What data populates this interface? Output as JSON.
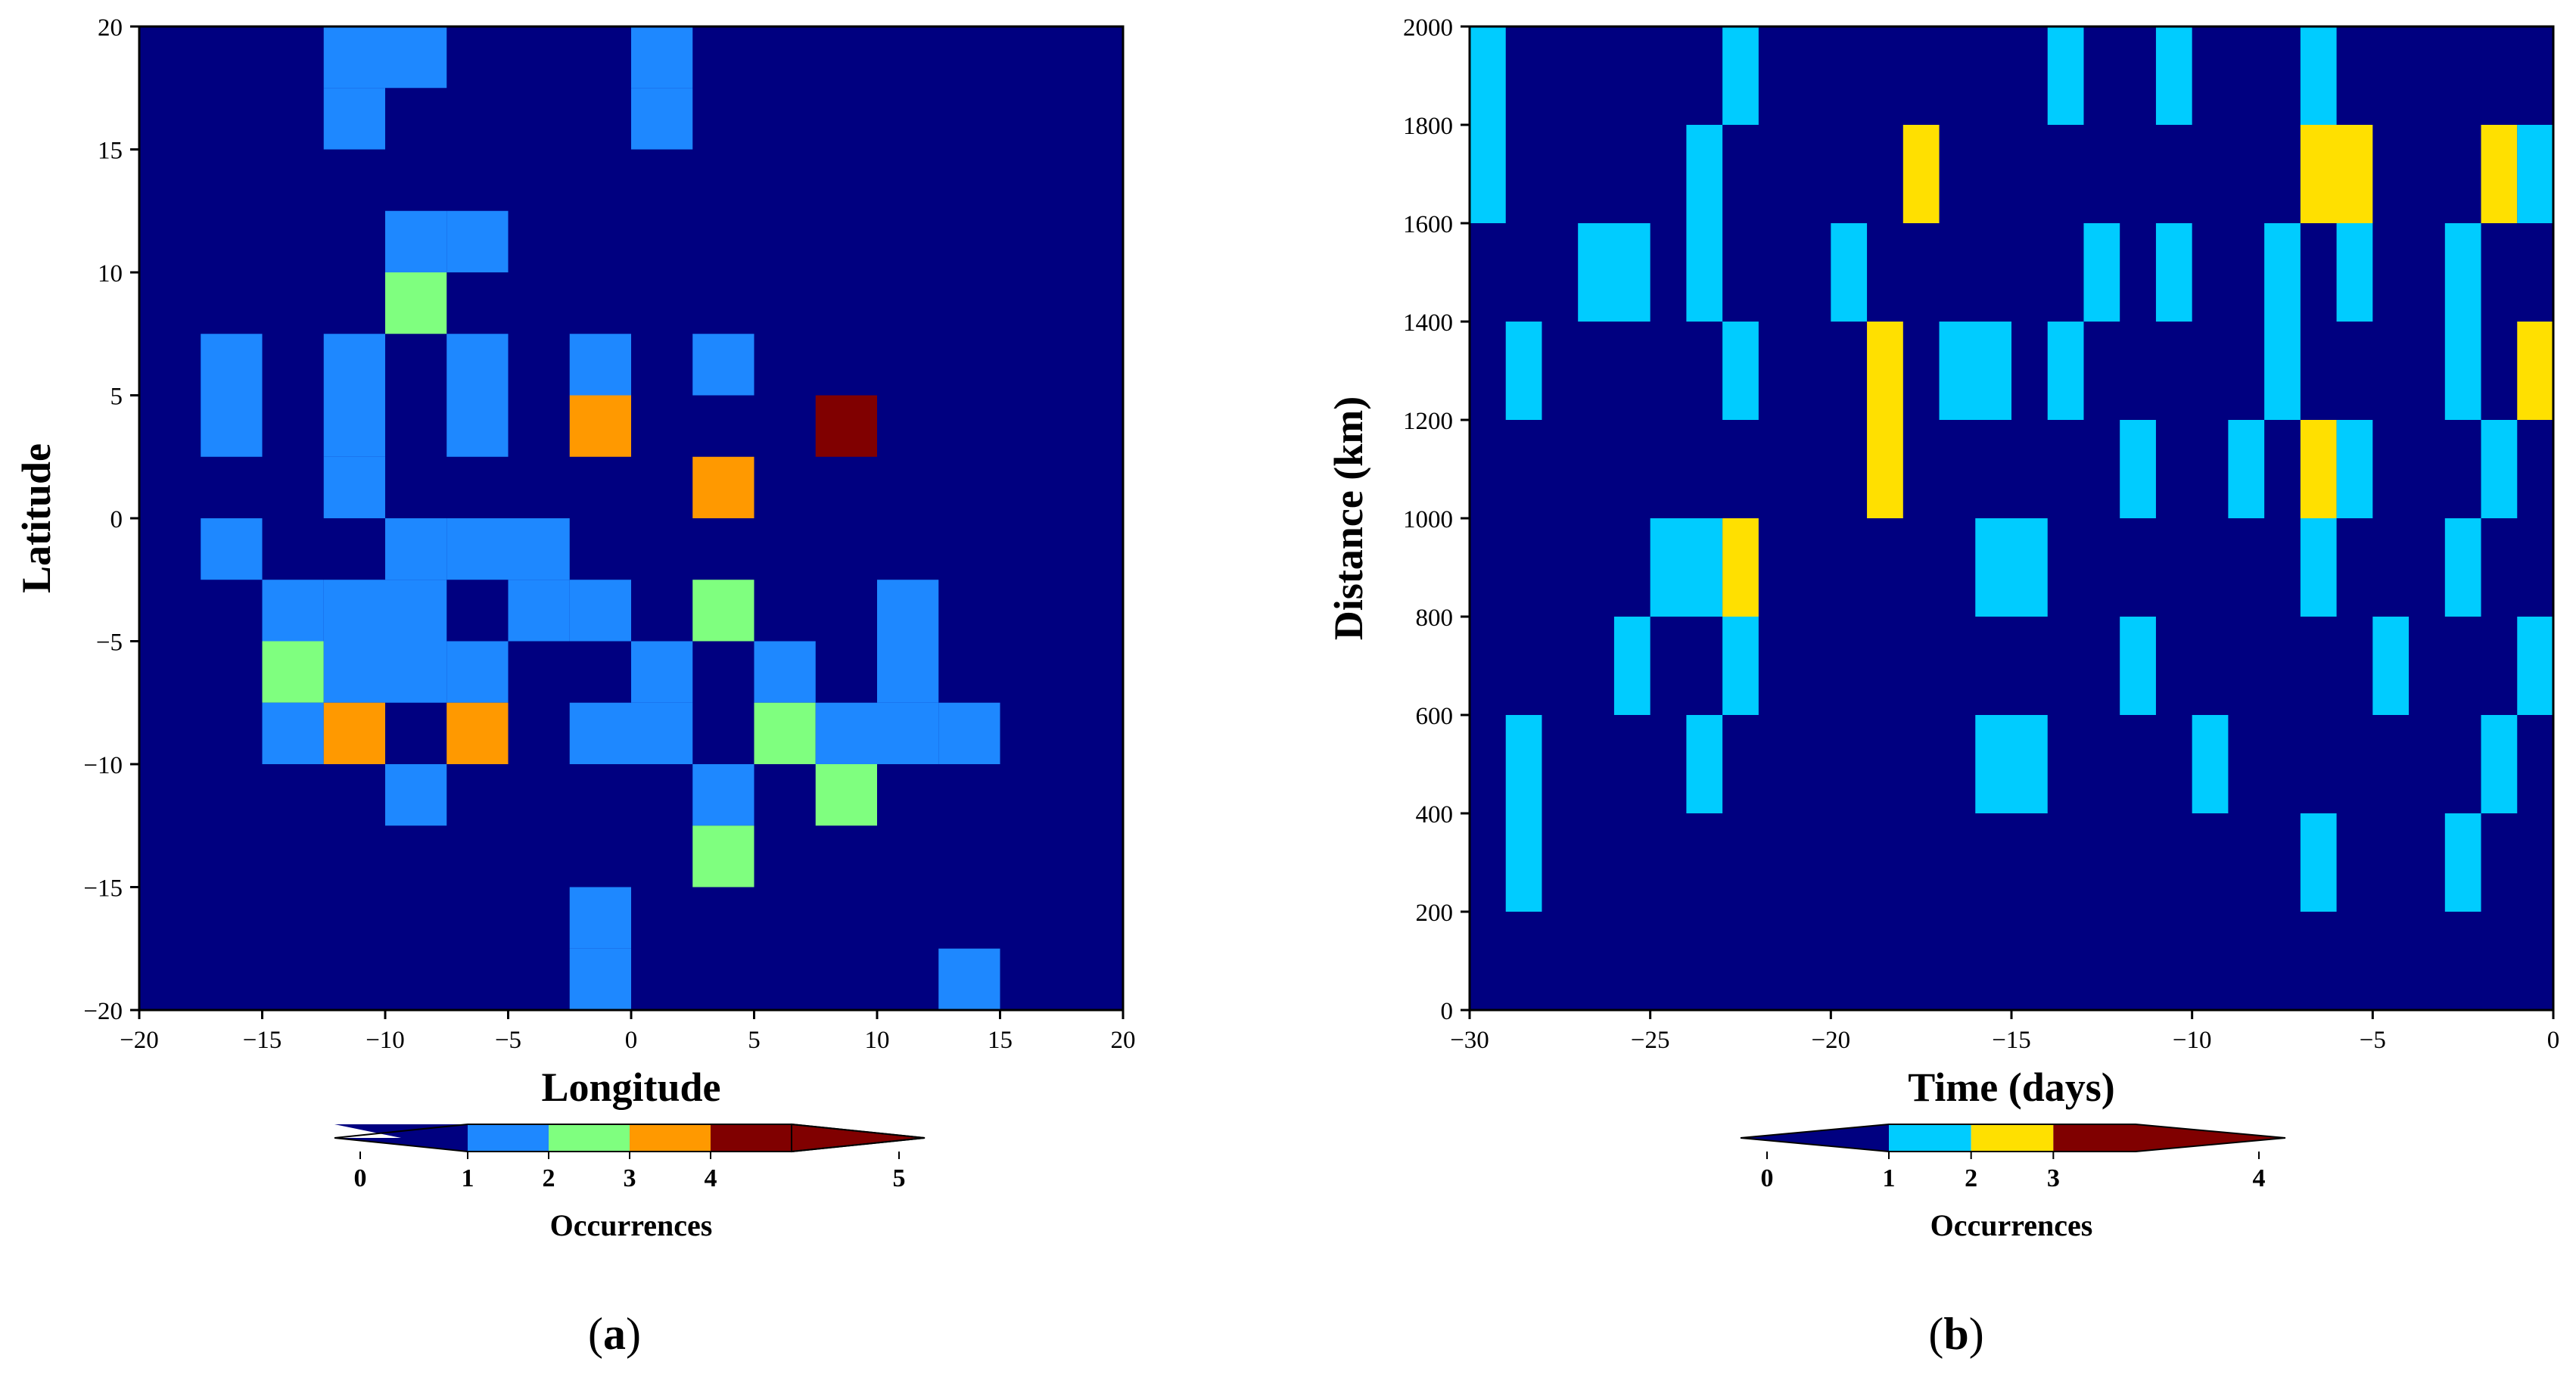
{
  "colors": {
    "background": "#000080",
    "frame": "#000000"
  },
  "chart_data": [
    {
      "id": "a",
      "type": "heatmap",
      "panel_label": "a",
      "xlabel": "Longitude",
      "ylabel": "Latitude",
      "xlim": [
        -20,
        20
      ],
      "ylim": [
        -20,
        20
      ],
      "xticks": [
        -20,
        -15,
        -10,
        -5,
        0,
        5,
        10,
        15,
        20
      ],
      "yticks": [
        -20,
        -15,
        -10,
        -5,
        0,
        5,
        10,
        15,
        20
      ],
      "xtick_labels": [
        "−20",
        "−15",
        "−10",
        "−5",
        "0",
        "5",
        "10",
        "15",
        "20"
      ],
      "ytick_labels": [
        "−20",
        "−15",
        "−10",
        "−5",
        "0",
        "5",
        "10",
        "15",
        "20"
      ],
      "cell_size": 2.5,
      "cells": [
        {
          "x0": -12.5,
          "y0": 17.5,
          "value": 1
        },
        {
          "x0": -10,
          "y0": 17.5,
          "value": 1
        },
        {
          "x0": 0,
          "y0": 17.5,
          "value": 1
        },
        {
          "x0": -12.5,
          "y0": 15,
          "value": 1
        },
        {
          "x0": 0,
          "y0": 15,
          "value": 1
        },
        {
          "x0": -10,
          "y0": 10,
          "value": 1
        },
        {
          "x0": -7.5,
          "y0": 10,
          "value": 1
        },
        {
          "x0": -10,
          "y0": 7.5,
          "value": 2
        },
        {
          "x0": -17.5,
          "y0": 5,
          "value": 1
        },
        {
          "x0": -12.5,
          "y0": 5,
          "value": 1
        },
        {
          "x0": -7.5,
          "y0": 5,
          "value": 1
        },
        {
          "x0": -2.5,
          "y0": 5,
          "value": 1
        },
        {
          "x0": 2.5,
          "y0": 5,
          "value": 1
        },
        {
          "x0": -17.5,
          "y0": 2.5,
          "value": 1
        },
        {
          "x0": -12.5,
          "y0": 2.5,
          "value": 1
        },
        {
          "x0": -7.5,
          "y0": 2.5,
          "value": 1
        },
        {
          "x0": -2.5,
          "y0": 2.5,
          "value": 3
        },
        {
          "x0": 7.5,
          "y0": 2.5,
          "value": 4
        },
        {
          "x0": -12.5,
          "y0": 0,
          "value": 1
        },
        {
          "x0": 2.5,
          "y0": 0,
          "value": 3
        },
        {
          "x0": -17.5,
          "y0": -2.5,
          "value": 1
        },
        {
          "x0": -10,
          "y0": -2.5,
          "value": 1
        },
        {
          "x0": -7.5,
          "y0": -2.5,
          "value": 1
        },
        {
          "x0": -5,
          "y0": -2.5,
          "value": 1
        },
        {
          "x0": -15,
          "y0": -5,
          "value": 1
        },
        {
          "x0": -12.5,
          "y0": -5,
          "value": 1
        },
        {
          "x0": -10,
          "y0": -5,
          "value": 1
        },
        {
          "x0": -5,
          "y0": -5,
          "value": 1
        },
        {
          "x0": -2.5,
          "y0": -5,
          "value": 1
        },
        {
          "x0": 2.5,
          "y0": -5,
          "value": 2
        },
        {
          "x0": 10,
          "y0": -5,
          "value": 1
        },
        {
          "x0": -15,
          "y0": -7.5,
          "value": 2
        },
        {
          "x0": -12.5,
          "y0": -7.5,
          "value": 1
        },
        {
          "x0": -10,
          "y0": -7.5,
          "value": 1
        },
        {
          "x0": -7.5,
          "y0": -7.5,
          "value": 1
        },
        {
          "x0": 0,
          "y0": -7.5,
          "value": 1
        },
        {
          "x0": 5,
          "y0": -7.5,
          "value": 1
        },
        {
          "x0": 10,
          "y0": -7.5,
          "value": 1
        },
        {
          "x0": -15,
          "y0": -10,
          "value": 1
        },
        {
          "x0": -12.5,
          "y0": -10,
          "value": 3
        },
        {
          "x0": -7.5,
          "y0": -10,
          "value": 3
        },
        {
          "x0": -2.5,
          "y0": -10,
          "value": 1
        },
        {
          "x0": 0,
          "y0": -10,
          "value": 1
        },
        {
          "x0": 5,
          "y0": -10,
          "value": 2
        },
        {
          "x0": 7.5,
          "y0": -10,
          "value": 1
        },
        {
          "x0": 10,
          "y0": -10,
          "value": 1
        },
        {
          "x0": 12.5,
          "y0": -10,
          "value": 1
        },
        {
          "x0": -10,
          "y0": -12.5,
          "value": 1
        },
        {
          "x0": 2.5,
          "y0": -12.5,
          "value": 1
        },
        {
          "x0": 7.5,
          "y0": -12.5,
          "value": 2
        },
        {
          "x0": 2.5,
          "y0": -15,
          "value": 2
        },
        {
          "x0": -2.5,
          "y0": -17.5,
          "value": 1
        },
        {
          "x0": -2.5,
          "y0": -20,
          "value": 1
        },
        {
          "x0": 12.5,
          "y0": -20,
          "value": 1
        }
      ],
      "colorbar": {
        "label": "Occurrences",
        "boundaries": [
          0,
          1,
          2,
          3,
          4,
          5
        ],
        "tick_labels": [
          "0",
          "1",
          "2",
          "3",
          "4",
          "5"
        ],
        "colors": [
          "#000080",
          "#1E88FF",
          "#7FFF7F",
          "#FF9900",
          "#800000"
        ]
      }
    },
    {
      "id": "b",
      "type": "heatmap",
      "panel_label": "b",
      "xlabel": "Time (days)",
      "ylabel": "Distance (km)",
      "xlim": [
        -30,
        0
      ],
      "ylim": [
        0,
        2000
      ],
      "xticks": [
        -30,
        -25,
        -20,
        -15,
        -10,
        -5,
        0
      ],
      "yticks": [
        0,
        200,
        400,
        600,
        800,
        1000,
        1200,
        1400,
        1600,
        1800,
        2000
      ],
      "xtick_labels": [
        "−30",
        "−25",
        "−20",
        "−15",
        "−10",
        "−5",
        "0"
      ],
      "ytick_labels": [
        "0",
        "200",
        "400",
        "600",
        "800",
        "1000",
        "1200",
        "1400",
        "1600",
        "1800",
        "2000"
      ],
      "cells": [
        {
          "x0": -30,
          "x1": -29,
          "y0": 1600,
          "y1": 2000,
          "value": 1
        },
        {
          "x0": -23,
          "x1": -22,
          "y0": 1800,
          "y1": 2000,
          "value": 1
        },
        {
          "x0": -14,
          "x1": -13,
          "y0": 1800,
          "y1": 2000,
          "value": 1
        },
        {
          "x0": -11,
          "x1": -10,
          "y0": 1800,
          "y1": 2000,
          "value": 1
        },
        {
          "x0": -7,
          "x1": -6,
          "y0": 1800,
          "y1": 2000,
          "value": 1
        },
        {
          "x0": -24,
          "x1": -23,
          "y0": 1400,
          "y1": 1800,
          "value": 1
        },
        {
          "x0": -18,
          "x1": -17,
          "y0": 1600,
          "y1": 1800,
          "value": 2
        },
        {
          "x0": -7,
          "x1": -5,
          "y0": 1600,
          "y1": 1800,
          "value": 2
        },
        {
          "x0": -2,
          "x1": -1,
          "y0": 1600,
          "y1": 1800,
          "value": 2
        },
        {
          "x0": -1,
          "x1": 0,
          "y0": 1600,
          "y1": 1800,
          "value": 1
        },
        {
          "x0": -27,
          "x1": -25,
          "y0": 1400,
          "y1": 1600,
          "value": 1
        },
        {
          "x0": -20,
          "x1": -19,
          "y0": 1400,
          "y1": 1600,
          "value": 1
        },
        {
          "x0": -13,
          "x1": -12,
          "y0": 1400,
          "y1": 1600,
          "value": 1
        },
        {
          "x0": -11,
          "x1": -10,
          "y0": 1400,
          "y1": 1600,
          "value": 1
        },
        {
          "x0": -8,
          "x1": -7,
          "y0": 1200,
          "y1": 1600,
          "value": 1
        },
        {
          "x0": -6,
          "x1": -5,
          "y0": 1400,
          "y1": 1600,
          "value": 1
        },
        {
          "x0": -3,
          "x1": -2,
          "y0": 1200,
          "y1": 1600,
          "value": 1
        },
        {
          "x0": -29,
          "x1": -28,
          "y0": 1200,
          "y1": 1400,
          "value": 1
        },
        {
          "x0": -23,
          "x1": -22,
          "y0": 1200,
          "y1": 1400,
          "value": 1
        },
        {
          "x0": -19,
          "x1": -18,
          "y0": 1000,
          "y1": 1400,
          "value": 2
        },
        {
          "x0": -17,
          "x1": -15,
          "y0": 1200,
          "y1": 1400,
          "value": 1
        },
        {
          "x0": -14,
          "x1": -13,
          "y0": 1200,
          "y1": 1400,
          "value": 1
        },
        {
          "x0": -1,
          "x1": 0,
          "y0": 1200,
          "y1": 1400,
          "value": 2
        },
        {
          "x0": -12,
          "x1": -11,
          "y0": 1000,
          "y1": 1200,
          "value": 1
        },
        {
          "x0": -9,
          "x1": -8,
          "y0": 1000,
          "y1": 1200,
          "value": 1
        },
        {
          "x0": -7,
          "x1": -6,
          "y0": 1000,
          "y1": 1200,
          "value": 2
        },
        {
          "x0": -6,
          "x1": -5,
          "y0": 1000,
          "y1": 1200,
          "value": 1
        },
        {
          "x0": -2,
          "x1": -1,
          "y0": 1000,
          "y1": 1200,
          "value": 1
        },
        {
          "x0": -25,
          "x1": -23,
          "y0": 800,
          "y1": 1000,
          "value": 1
        },
        {
          "x0": -23,
          "x1": -22,
          "y0": 800,
          "y1": 1000,
          "value": 2
        },
        {
          "x0": -16,
          "x1": -14,
          "y0": 800,
          "y1": 1000,
          "value": 1
        },
        {
          "x0": -7,
          "x1": -6,
          "y0": 800,
          "y1": 1000,
          "value": 1
        },
        {
          "x0": -3,
          "x1": -2,
          "y0": 800,
          "y1": 1000,
          "value": 1
        },
        {
          "x0": -26,
          "x1": -25,
          "y0": 600,
          "y1": 800,
          "value": 1
        },
        {
          "x0": -23,
          "x1": -22,
          "y0": 600,
          "y1": 800,
          "value": 1
        },
        {
          "x0": -12,
          "x1": -11,
          "y0": 600,
          "y1": 800,
          "value": 1
        },
        {
          "x0": -5,
          "x1": -4,
          "y0": 600,
          "y1": 800,
          "value": 1
        },
        {
          "x0": -1,
          "x1": 0,
          "y0": 600,
          "y1": 800,
          "value": 1
        },
        {
          "x0": -29,
          "x1": -28,
          "y0": 200,
          "y1": 600,
          "value": 1
        },
        {
          "x0": -24,
          "x1": -23,
          "y0": 400,
          "y1": 600,
          "value": 1
        },
        {
          "x0": -16,
          "x1": -14,
          "y0": 400,
          "y1": 600,
          "value": 1
        },
        {
          "x0": -10,
          "x1": -9,
          "y0": 400,
          "y1": 600,
          "value": 1
        },
        {
          "x0": -2,
          "x1": -1,
          "y0": 400,
          "y1": 600,
          "value": 1
        },
        {
          "x0": -7,
          "x1": -6,
          "y0": 200,
          "y1": 400,
          "value": 1
        },
        {
          "x0": -3,
          "x1": -2,
          "y0": 200,
          "y1": 400,
          "value": 1
        }
      ],
      "colorbar": {
        "label": "Occurrences",
        "boundaries": [
          0,
          1,
          2,
          3,
          4
        ],
        "tick_labels": [
          "0",
          "1",
          "2",
          "3",
          "4"
        ],
        "colors": [
          "#000080",
          "#00CCFF",
          "#FFE000",
          "#800000"
        ]
      }
    }
  ]
}
